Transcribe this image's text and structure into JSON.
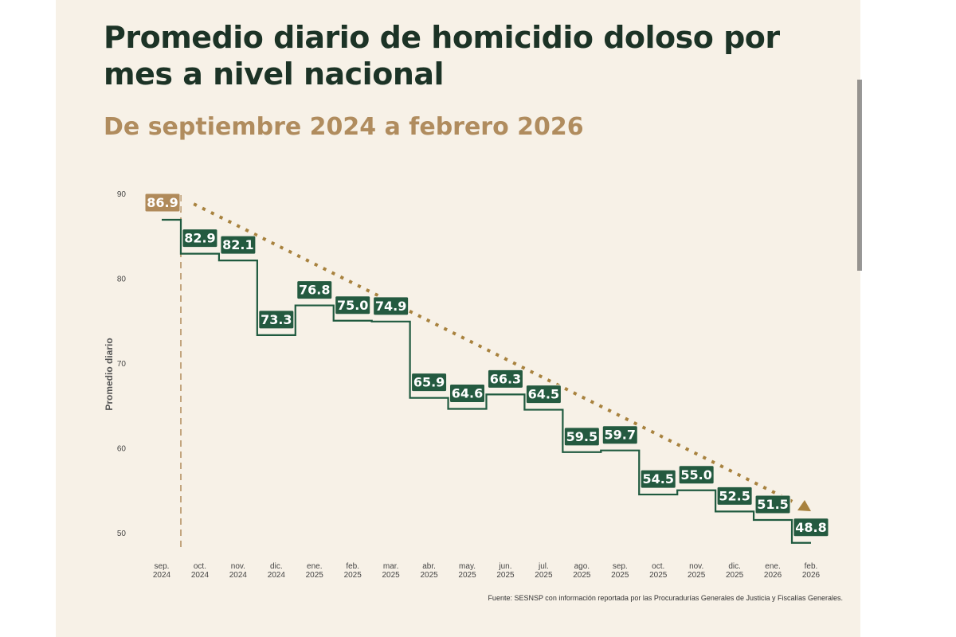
{
  "title": "Promedio diario de homicidio doloso por mes a nivel nacional",
  "subtitle": "De septiembre 2024 a febrero 2026",
  "source": "Fuente: SESNSP con información reportada por las Procuradurías Generales de Justicia y Fiscalías Generales.",
  "colors": {
    "line": "#1f5a3f",
    "label_bg": "#245a40",
    "first_label_bg": "#b08a5a",
    "trend": "#a8823e",
    "axis_text": "#444444"
  },
  "chart_data": {
    "type": "line",
    "step": true,
    "ylabel": "Promedio diario",
    "xlabel": "",
    "ylim": [
      50,
      90
    ],
    "yticks": [
      50,
      60,
      70,
      80,
      90
    ],
    "grid": false,
    "categories": [
      [
        "sep.",
        "2024"
      ],
      [
        "oct.",
        "2024"
      ],
      [
        "nov.",
        "2024"
      ],
      [
        "dic.",
        "2024"
      ],
      [
        "ene.",
        "2025"
      ],
      [
        "feb.",
        "2025"
      ],
      [
        "mar.",
        "2025"
      ],
      [
        "abr.",
        "2025"
      ],
      [
        "may.",
        "2025"
      ],
      [
        "jun.",
        "2025"
      ],
      [
        "jul.",
        "2025"
      ],
      [
        "ago.",
        "2025"
      ],
      [
        "sep.",
        "2025"
      ],
      [
        "oct.",
        "2025"
      ],
      [
        "nov.",
        "2025"
      ],
      [
        "dic.",
        "2025"
      ],
      [
        "ene.",
        "2026"
      ],
      [
        "feb.",
        "2026"
      ]
    ],
    "values": [
      86.9,
      82.9,
      82.1,
      73.3,
      76.8,
      75.0,
      74.9,
      65.9,
      64.6,
      66.3,
      64.5,
      59.5,
      59.7,
      54.5,
      55.0,
      52.5,
      51.5,
      48.8
    ],
    "data_labels": [
      "86.9",
      "82.9",
      "82.1",
      "73.3",
      "76.8",
      "75.0",
      "74.9",
      "65.9",
      "64.6",
      "66.3",
      "64.5",
      "59.5",
      "59.7",
      "54.5",
      "55.0",
      "52.5",
      "51.5",
      "48.8"
    ],
    "trend_line": "dotted downward arrow",
    "reference_line": "dashed vertical between sep. 2024 and oct. 2024"
  }
}
